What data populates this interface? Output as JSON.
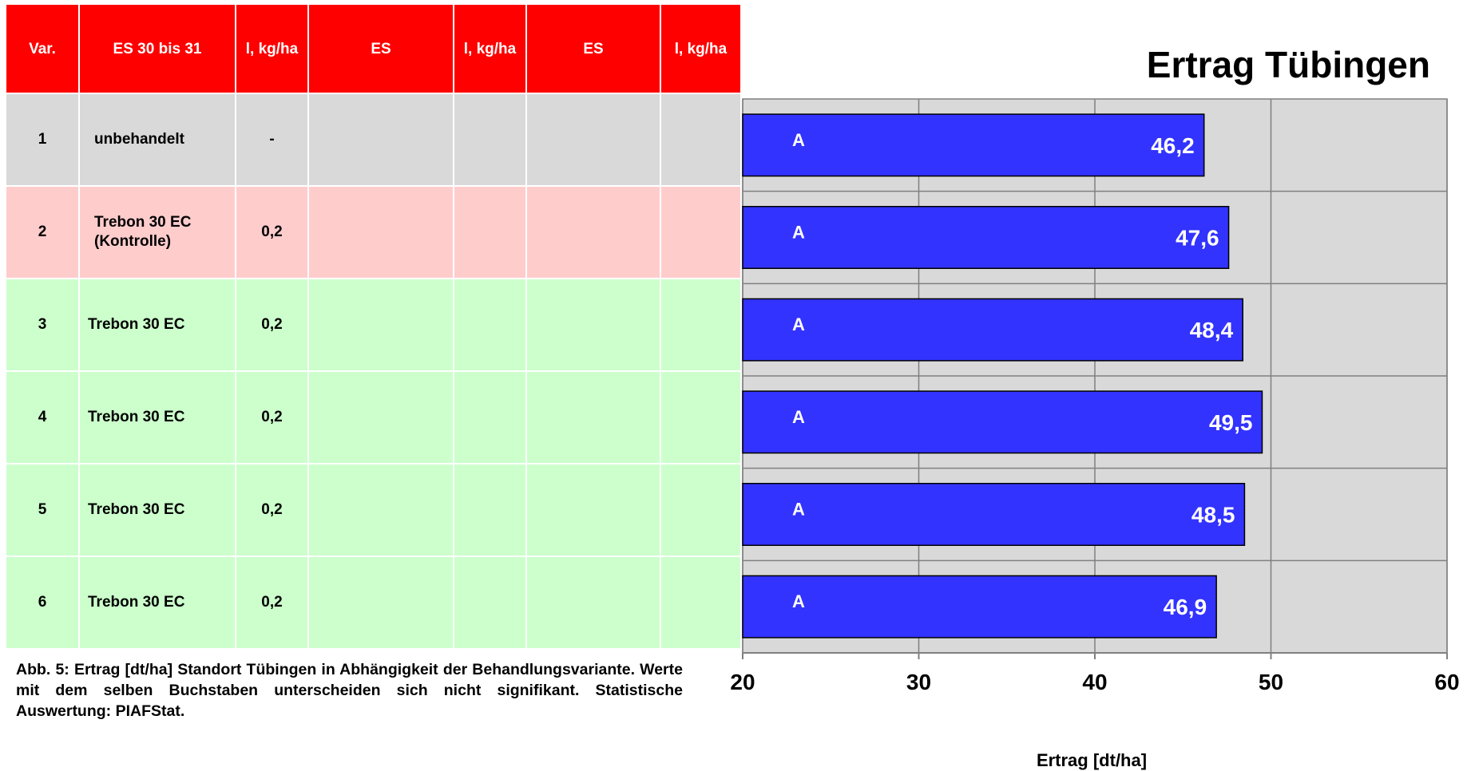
{
  "table": {
    "headers": [
      "Var.",
      "ES 30 bis 31",
      "l, kg/ha",
      "ES",
      "l, kg/ha",
      "ES",
      "l, kg/ha"
    ],
    "rows": [
      {
        "var": "1",
        "product": "unbehandelt",
        "dose": "-",
        "row_color": "#d9d9d9"
      },
      {
        "var": "2",
        "product": "Trebon 30 EC (Kontrolle)",
        "dose": "0,2",
        "row_color": "#ffcccc"
      },
      {
        "var": "3",
        "product": "Trebon 30 EC",
        "dose": "0,2",
        "row_color": "#ccffcc"
      },
      {
        "var": "4",
        "product": "Trebon 30 EC",
        "dose": "0,2",
        "row_color": "#ccffcc"
      },
      {
        "var": "5",
        "product": "Trebon 30 EC",
        "dose": "0,2",
        "row_color": "#ccffcc"
      },
      {
        "var": "6",
        "product": "Trebon 30 EC",
        "dose": "0,2",
        "row_color": "#ccffcc"
      }
    ]
  },
  "caption": "Abb. 5: Ertrag [dt/ha] Standort Tübingen in Abhängigkeit der Behandlungsvariante. Werte mit dem selben Buchstaben unterscheiden sich nicht signifikant. Statistische Auswertung: PIAFStat.",
  "chart_data": {
    "type": "bar",
    "orientation": "horizontal",
    "title": "Ertrag Tübingen",
    "xlabel": "Ertrag [dt/ha]",
    "ylabel": "",
    "categories": [
      "1",
      "2",
      "3",
      "4",
      "5",
      "6"
    ],
    "values": [
      46.2,
      47.6,
      48.4,
      49.5,
      48.5,
      46.9
    ],
    "value_labels": [
      "46,2",
      "47,6",
      "48,4",
      "49,5",
      "48,5",
      "46,9"
    ],
    "significance_letters": [
      "A",
      "A",
      "A",
      "A",
      "A",
      "A"
    ],
    "xlim": [
      20,
      60
    ],
    "xticks": [
      20,
      30,
      40,
      50,
      60
    ],
    "grid": true,
    "bar_color": "#3333ff",
    "plot_background": "#d9d9d9"
  }
}
